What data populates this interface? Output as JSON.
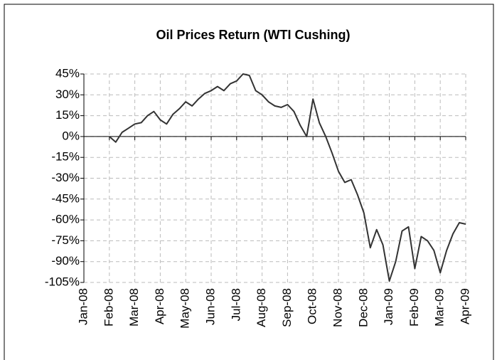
{
  "chart_data": {
    "type": "line",
    "title": "Oil Prices Return (WTI Cushing)",
    "categories": [
      "Jan-08",
      null,
      null,
      null,
      "Feb-08",
      null,
      null,
      null,
      "Mar-08",
      null,
      null,
      null,
      "Apr-08",
      null,
      null,
      null,
      "May-08",
      null,
      null,
      null,
      "Jun-08",
      null,
      null,
      null,
      "Jul-08",
      null,
      null,
      null,
      "Aug-08",
      null,
      null,
      null,
      "Sep-08",
      null,
      null,
      null,
      "Oct-08",
      null,
      null,
      null,
      "Nov-08",
      null,
      null,
      null,
      "Dec-08",
      null,
      null,
      null,
      "Jan-09",
      null,
      null,
      null,
      "Feb-09",
      null,
      null,
      null,
      "Mar-09",
      null,
      null,
      null,
      "Apr-09"
    ],
    "values": [
      null,
      null,
      null,
      null,
      0,
      -4,
      3,
      6,
      9,
      10,
      15,
      18,
      12,
      9,
      16,
      20,
      25,
      22,
      27,
      31,
      33,
      36,
      33,
      38,
      40,
      45,
      44,
      33,
      30,
      25,
      22,
      21,
      23,
      18,
      8,
      0,
      27,
      10,
      0,
      -12,
      -25,
      -33,
      -31,
      -42,
      -55,
      -80,
      -67,
      -78,
      -104,
      -90,
      -68,
      -65,
      -95,
      -72,
      -75,
      -82,
      -98,
      -82,
      -70,
      -62,
      -63
    ],
    "color": "#333333",
    "ylim": [
      -105,
      45
    ],
    "yticks": [
      {
        "value": -105,
        "label": "-105%"
      },
      {
        "value": -90,
        "label": "-90%"
      },
      {
        "value": -75,
        "label": "-75%"
      },
      {
        "value": -60,
        "label": "-60%"
      },
      {
        "value": -45,
        "label": "-45%"
      },
      {
        "value": -30,
        "label": "-30%"
      },
      {
        "value": -15,
        "label": "-15%"
      },
      {
        "value": 0,
        "label": "0%"
      },
      {
        "value": 15,
        "label": "15%"
      },
      {
        "value": 30,
        "label": "30%"
      },
      {
        "value": 45,
        "label": "45%"
      }
    ],
    "grid": true
  }
}
